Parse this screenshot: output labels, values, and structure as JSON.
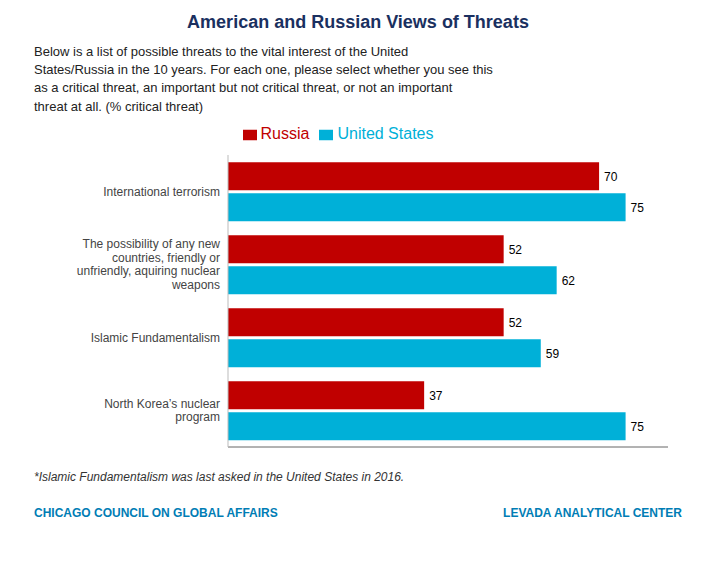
{
  "chart_data": {
    "type": "bar",
    "orientation": "horizontal",
    "title": "American and Russian Views of Threats",
    "subtitle": "Below is a list of possible threats to the vital interest of the United\nStates/Russia in the 10 years. For each one, please select whether you see this\nas a critical threat, an important but not critical threat, or not an important\nthreat at all. (% critical threat)",
    "categories": [
      "International terrorism",
      "The possibility of any new\ncountries, friendly or\nunfriendly, aquiring nuclear\nweapons",
      "Islamic Fundamentalism",
      "North Korea’s nuclear\nprogram"
    ],
    "series": [
      {
        "name": "Russia",
        "color": "#c00000",
        "values": [
          70,
          52,
          52,
          37
        ]
      },
      {
        "name": "United States",
        "color": "#00b0d8",
        "values": [
          75,
          62,
          59,
          75
        ]
      }
    ],
    "xlim": [
      0,
      83
    ],
    "grid": false,
    "legend": "top",
    "data_labels": true,
    "tick_labels": "y",
    "annotations": [
      "*Islamic Fundamentalism was last asked in the United States in 2016.",
      "CHICAGO COUNCIL ON GLOBAL AFFAIRS",
      "LEVADA ANALYTICAL CENTER"
    ]
  }
}
